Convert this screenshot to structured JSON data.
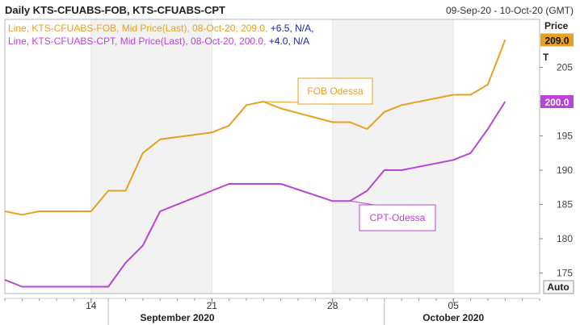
{
  "header": {
    "title": "Daily KTS-CFUABS-FOB, KTS-CFUABS-CPT",
    "date_range": "09-Sep-20 - 10-Oct-20 (GMT)"
  },
  "legend": {
    "line1_main": "Line, KTS-CFUABS-FOB, Mid Price(Last), 08-Oct-20, 209.0,",
    "line1_change": "+6.5, N/A,",
    "line2_main": "Line, KTS-CFUABS-CPT, Mid Price(Last), 08-Oct-20, 200.0,",
    "line2_change": "+4.0, N/A"
  },
  "axis": {
    "price_label": "Price",
    "unit_label": "T",
    "auto_button": "Auto"
  },
  "colors": {
    "fob": "#E8A020",
    "cpt": "#B845D8",
    "change_text": "#1a2a9a",
    "weekend_band": "#f2f2f2"
  },
  "chart_data": {
    "type": "line",
    "x_axis_type": "date",
    "xlim": [
      "2020-09-09",
      "2020-10-10"
    ],
    "ylim": [
      172,
      212
    ],
    "y_ticks": [
      175,
      180,
      185,
      190,
      195,
      200,
      205
    ],
    "x_ticks": [
      {
        "date": "2020-09-14",
        "label": "14"
      },
      {
        "date": "2020-09-21",
        "label": "21"
      },
      {
        "date": "2020-09-28",
        "label": "28"
      },
      {
        "date": "2020-10-05",
        "label": "05"
      }
    ],
    "month_labels": [
      {
        "date": "2020-09-19",
        "label": "September 2020"
      },
      {
        "date": "2020-10-05",
        "label": "October 2020"
      }
    ],
    "month_boundaries": [
      "2020-09-15",
      "2020-10-01"
    ],
    "shaded_ranges": [
      [
        "2020-09-14",
        "2020-09-21"
      ],
      [
        "2020-09-28",
        "2020-10-05"
      ]
    ],
    "series": [
      {
        "name": "KTS-CFUABS-FOB",
        "key": "fob",
        "points": [
          [
            "2020-09-09",
            184.0
          ],
          [
            "2020-09-10",
            183.5
          ],
          [
            "2020-09-11",
            184.0
          ],
          [
            "2020-09-14",
            184.0
          ],
          [
            "2020-09-15",
            187.0
          ],
          [
            "2020-09-16",
            187.0
          ],
          [
            "2020-09-17",
            192.5
          ],
          [
            "2020-09-18",
            194.5
          ],
          [
            "2020-09-21",
            195.5
          ],
          [
            "2020-09-22",
            196.5
          ],
          [
            "2020-09-23",
            199.5
          ],
          [
            "2020-09-24",
            200.0
          ],
          [
            "2020-09-25",
            199.0
          ],
          [
            "2020-09-28",
            197.0
          ],
          [
            "2020-09-29",
            197.0
          ],
          [
            "2020-09-30",
            196.0
          ],
          [
            "2020-10-01",
            198.5
          ],
          [
            "2020-10-02",
            199.5
          ],
          [
            "2020-10-05",
            201.0
          ],
          [
            "2020-10-06",
            201.0
          ],
          [
            "2020-10-07",
            202.5
          ],
          [
            "2020-10-08",
            209.0
          ]
        ]
      },
      {
        "name": "KTS-CFUABS-CPT",
        "key": "cpt",
        "points": [
          [
            "2020-09-09",
            174.0
          ],
          [
            "2020-09-10",
            173.0
          ],
          [
            "2020-09-11",
            173.0
          ],
          [
            "2020-09-14",
            173.0
          ],
          [
            "2020-09-15",
            173.0
          ],
          [
            "2020-09-16",
            176.5
          ],
          [
            "2020-09-17",
            179.0
          ],
          [
            "2020-09-18",
            184.0
          ],
          [
            "2020-09-21",
            187.0
          ],
          [
            "2020-09-22",
            188.0
          ],
          [
            "2020-09-25",
            188.0
          ],
          [
            "2020-09-28",
            185.5
          ],
          [
            "2020-09-29",
            185.5
          ],
          [
            "2020-09-30",
            187.0
          ],
          [
            "2020-10-01",
            190.0
          ],
          [
            "2020-10-02",
            190.0
          ],
          [
            "2020-10-05",
            191.5
          ],
          [
            "2020-10-06",
            192.5
          ],
          [
            "2020-10-07",
            196.0
          ],
          [
            "2020-10-08",
            200.0
          ]
        ]
      }
    ],
    "last_value_labels": [
      {
        "key": "fob",
        "value": "209.0",
        "y": 209.0
      },
      {
        "key": "cpt",
        "value": "200.0",
        "y": 200.0
      }
    ],
    "annotations": [
      {
        "key": "fob",
        "text": "FOB Odessa",
        "target": [
          "2020-09-24",
          200.0
        ]
      },
      {
        "key": "cpt",
        "text": "CPT-Odessa",
        "target": [
          "2020-09-29",
          185.5
        ]
      }
    ]
  }
}
